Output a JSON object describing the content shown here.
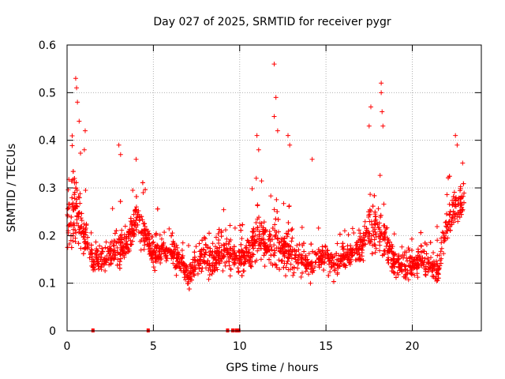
{
  "chart_data": {
    "type": "scatter",
    "title": "Day 027 of 2025, SRMTID for receiver pygr",
    "xlabel": "GPS time / hours",
    "ylabel": "SRMTID / TECUs",
    "xlim": [
      0,
      24
    ],
    "ylim": [
      0,
      0.6
    ],
    "x_ticks": [
      0,
      5,
      10,
      15,
      20
    ],
    "x_tick_labels": [
      "0",
      "5",
      "10",
      "15",
      "20"
    ],
    "y_ticks": [
      0,
      0.1,
      0.2,
      0.3,
      0.4,
      0.5,
      0.6
    ],
    "y_tick_labels": [
      "0",
      "0.1",
      "0.2",
      "0.3",
      "0.4",
      "0.5",
      "0.6"
    ],
    "grid": true,
    "marker": "+",
    "color": "#ff0000",
    "envelope": {
      "hours": [
        0.0,
        0.5,
        1.0,
        1.5,
        2.0,
        2.5,
        3.0,
        3.5,
        4.0,
        4.5,
        5.0,
        5.5,
        6.0,
        6.5,
        7.0,
        7.5,
        8.0,
        8.5,
        9.0,
        9.5,
        10.0,
        10.5,
        11.0,
        11.5,
        12.0,
        12.5,
        13.0,
        13.5,
        14.0,
        14.5,
        15.0,
        15.5,
        16.0,
        16.5,
        17.0,
        17.5,
        18.0,
        18.5,
        19.0,
        19.5,
        20.0,
        20.5,
        21.0,
        21.5,
        22.0,
        22.5,
        23.0
      ],
      "median": [
        0.22,
        0.26,
        0.2,
        0.15,
        0.15,
        0.16,
        0.17,
        0.19,
        0.24,
        0.2,
        0.16,
        0.17,
        0.17,
        0.15,
        0.12,
        0.14,
        0.16,
        0.15,
        0.17,
        0.16,
        0.15,
        0.16,
        0.2,
        0.18,
        0.19,
        0.17,
        0.16,
        0.15,
        0.14,
        0.15,
        0.16,
        0.14,
        0.15,
        0.16,
        0.18,
        0.21,
        0.22,
        0.18,
        0.14,
        0.13,
        0.14,
        0.15,
        0.13,
        0.13,
        0.22,
        0.26,
        0.27
      ],
      "spread": [
        0.08,
        0.14,
        0.08,
        0.04,
        0.05,
        0.05,
        0.08,
        0.06,
        0.07,
        0.06,
        0.05,
        0.05,
        0.05,
        0.05,
        0.05,
        0.06,
        0.06,
        0.06,
        0.07,
        0.05,
        0.06,
        0.07,
        0.09,
        0.07,
        0.1,
        0.07,
        0.08,
        0.05,
        0.05,
        0.05,
        0.05,
        0.05,
        0.05,
        0.05,
        0.06,
        0.09,
        0.1,
        0.06,
        0.05,
        0.05,
        0.05,
        0.05,
        0.05,
        0.05,
        0.07,
        0.07,
        0.05
      ]
    },
    "peaks": [
      {
        "x": 0.5,
        "y": 0.53
      },
      {
        "x": 0.55,
        "y": 0.51
      },
      {
        "x": 0.6,
        "y": 0.48
      },
      {
        "x": 0.7,
        "y": 0.44
      },
      {
        "x": 1.05,
        "y": 0.42
      },
      {
        "x": 1.0,
        "y": 0.38
      },
      {
        "x": 3.0,
        "y": 0.39
      },
      {
        "x": 3.1,
        "y": 0.37
      },
      {
        "x": 4.0,
        "y": 0.36
      },
      {
        "x": 11.0,
        "y": 0.41
      },
      {
        "x": 11.1,
        "y": 0.38
      },
      {
        "x": 12.0,
        "y": 0.56
      },
      {
        "x": 12.1,
        "y": 0.49
      },
      {
        "x": 12.0,
        "y": 0.45
      },
      {
        "x": 12.2,
        "y": 0.42
      },
      {
        "x": 12.8,
        "y": 0.41
      },
      {
        "x": 12.9,
        "y": 0.39
      },
      {
        "x": 14.2,
        "y": 0.36
      },
      {
        "x": 17.6,
        "y": 0.47
      },
      {
        "x": 18.2,
        "y": 0.52
      },
      {
        "x": 18.2,
        "y": 0.5
      },
      {
        "x": 18.25,
        "y": 0.46
      },
      {
        "x": 18.3,
        "y": 0.43
      },
      {
        "x": 17.5,
        "y": 0.43
      },
      {
        "x": 22.5,
        "y": 0.41
      },
      {
        "x": 22.6,
        "y": 0.39
      }
    ],
    "zero_markers": [
      {
        "x": 1.5,
        "y": 0
      },
      {
        "x": 4.7,
        "y": 0
      },
      {
        "x": 9.3,
        "y": 0
      },
      {
        "x": 9.6,
        "y": 0
      },
      {
        "x": 9.8,
        "y": 0
      },
      {
        "x": 9.95,
        "y": 0
      }
    ]
  }
}
